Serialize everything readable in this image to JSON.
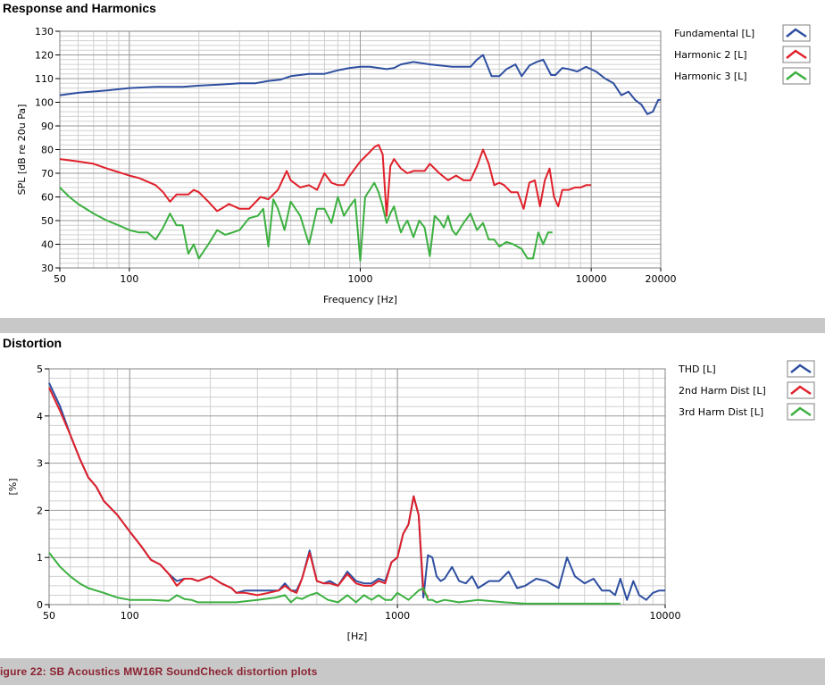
{
  "caption": "igure 22: SB Acoustics MW16R SoundCheck distortion plots",
  "colors": {
    "blue": "#2e4fa0",
    "red": "#e0202a",
    "green": "#3cb040",
    "grid_major": "#9a9a9a",
    "grid_minor": "#d0d0d0"
  },
  "chart_data": [
    {
      "type": "line",
      "title": "Response and Harmonics",
      "xlabel": "Frequency [Hz]",
      "ylabel": "SPL [dB re 20u Pa]",
      "xscale": "log",
      "xlim": [
        50,
        20000
      ],
      "ylim": [
        30,
        130
      ],
      "xticks": [
        50,
        100,
        1000,
        10000,
        20000
      ],
      "xtick_labels": [
        "50",
        "100",
        "1000",
        "10000",
        "20000"
      ],
      "yticks": [
        30,
        40,
        50,
        60,
        70,
        80,
        90,
        100,
        110,
        120,
        130
      ],
      "grid": true,
      "legend_position": "right",
      "series": [
        {
          "name": "Fundamental [L]",
          "color": "#2e4fa0",
          "x": [
            50,
            60,
            80,
            100,
            130,
            170,
            200,
            250,
            300,
            350,
            400,
            450,
            500,
            600,
            700,
            800,
            900,
            1000,
            1100,
            1200,
            1300,
            1400,
            1500,
            1700,
            2000,
            2500,
            3000,
            3200,
            3400,
            3700,
            4000,
            4300,
            4700,
            5000,
            5400,
            5800,
            6200,
            6700,
            7000,
            7500,
            8000,
            8700,
            9500,
            10500,
            11500,
            12500,
            13500,
            14500,
            15500,
            16500,
            17500,
            18500,
            19500,
            20000
          ],
          "y": [
            103,
            104,
            105,
            106,
            106.5,
            106.5,
            107,
            107.5,
            108,
            108,
            109,
            109.5,
            111,
            112,
            112,
            113.5,
            114.5,
            115,
            115,
            114.5,
            114,
            114.5,
            116,
            117,
            116,
            115,
            115,
            118,
            120,
            111,
            111,
            114,
            116,
            111,
            115.5,
            117,
            118,
            111.5,
            111.5,
            114.5,
            114,
            113,
            115,
            113,
            110,
            108,
            103,
            104.5,
            101,
            99,
            95,
            96,
            101,
            101
          ]
        },
        {
          "name": "Harmonic 2 [L]",
          "color": "#e0202a",
          "x": [
            50,
            60,
            70,
            80,
            100,
            110,
            130,
            140,
            150,
            160,
            170,
            180,
            190,
            200,
            220,
            240,
            250,
            270,
            300,
            330,
            370,
            400,
            440,
            480,
            500,
            550,
            600,
            650,
            700,
            750,
            800,
            850,
            900,
            1000,
            1050,
            1100,
            1150,
            1200,
            1250,
            1300,
            1350,
            1400,
            1500,
            1600,
            1700,
            1800,
            1900,
            2000,
            2200,
            2400,
            2600,
            2800,
            3000,
            3200,
            3400,
            3600,
            3800,
            4000,
            4200,
            4500,
            4800,
            5100,
            5400,
            5700,
            6000,
            6300,
            6600,
            6900,
            7200,
            7500,
            8000,
            8500,
            9000,
            9500,
            10000
          ],
          "y": [
            76,
            75,
            74,
            72,
            69,
            68,
            65,
            62,
            58,
            61,
            61,
            61,
            63,
            62,
            58,
            54,
            55,
            57,
            55,
            55,
            60,
            59,
            63,
            71,
            67,
            64,
            65,
            63,
            70,
            66,
            65,
            65,
            69,
            75,
            77,
            79,
            81,
            82,
            78,
            52,
            73,
            76,
            72,
            70,
            71,
            71,
            71,
            74,
            70,
            67,
            69,
            67,
            67,
            73,
            80,
            74,
            65,
            66,
            65,
            62,
            62,
            55,
            66,
            67,
            56,
            67,
            72,
            60,
            56,
            63,
            63,
            64,
            64,
            65,
            65
          ]
        },
        {
          "name": "Harmonic 3 [L]",
          "color": "#3cb040",
          "x": [
            50,
            55,
            60,
            70,
            80,
            90,
            100,
            110,
            120,
            130,
            140,
            150,
            160,
            170,
            180,
            190,
            200,
            220,
            240,
            260,
            280,
            300,
            330,
            360,
            380,
            400,
            420,
            440,
            470,
            500,
            550,
            600,
            650,
            700,
            750,
            800,
            850,
            900,
            950,
            1000,
            1050,
            1100,
            1150,
            1200,
            1250,
            1300,
            1350,
            1400,
            1450,
            1500,
            1550,
            1600,
            1700,
            1800,
            1900,
            2000,
            2100,
            2200,
            2300,
            2400,
            2500,
            2600,
            2800,
            3000,
            3200,
            3400,
            3600,
            3800,
            4000,
            4300,
            4600,
            5000,
            5300,
            5600,
            5900,
            6200,
            6500,
            6800
          ],
          "y": [
            64,
            60,
            57,
            53,
            50,
            48,
            46,
            45,
            45,
            42,
            47,
            53,
            48,
            48,
            36,
            40,
            34,
            40,
            46,
            44,
            45,
            46,
            51,
            52,
            55,
            39,
            59,
            55,
            46,
            58,
            52,
            40,
            55,
            55,
            49,
            60,
            52,
            56,
            59,
            33,
            60,
            63,
            66,
            62,
            56,
            49,
            53,
            56,
            50,
            45,
            48,
            50,
            43,
            50,
            47,
            35,
            52,
            50,
            47,
            52,
            46,
            44,
            49,
            53,
            46,
            49,
            42,
            42,
            39,
            41,
            40,
            38,
            34,
            34,
            45,
            40,
            45,
            45
          ]
        }
      ]
    },
    {
      "type": "line",
      "title": "Distortion",
      "xlabel": "[Hz]",
      "ylabel": "[%]",
      "xscale": "log",
      "xlim": [
        50,
        10000
      ],
      "ylim": [
        0,
        5
      ],
      "xticks": [
        50,
        100,
        1000,
        10000
      ],
      "xtick_labels": [
        "50",
        "100",
        "1000",
        "10000"
      ],
      "yticks": [
        0,
        1,
        2,
        3,
        4,
        5
      ],
      "grid": true,
      "legend_position": "right",
      "series": [
        {
          "name": "THD [L]",
          "color": "#2e4fa0",
          "x": [
            50,
            55,
            60,
            65,
            70,
            75,
            80,
            90,
            100,
            110,
            120,
            130,
            140,
            150,
            160,
            170,
            180,
            200,
            220,
            240,
            250,
            270,
            300,
            330,
            360,
            380,
            400,
            420,
            440,
            470,
            500,
            530,
            560,
            600,
            650,
            700,
            750,
            800,
            850,
            900,
            950,
            1000,
            1050,
            1100,
            1150,
            1200,
            1250,
            1300,
            1350,
            1400,
            1450,
            1500,
            1600,
            1700,
            1800,
            1900,
            2000,
            2200,
            2400,
            2600,
            2800,
            3000,
            3300,
            3600,
            4000,
            4300,
            4600,
            5000,
            5400,
            5800,
            6200,
            6500,
            6800,
            7200,
            7600,
            8000,
            8500,
            9000,
            9500,
            10000
          ],
          "y": [
            4.7,
            4.2,
            3.6,
            3.1,
            2.7,
            2.5,
            2.2,
            1.9,
            1.55,
            1.25,
            0.95,
            0.85,
            0.65,
            0.5,
            0.55,
            0.55,
            0.5,
            0.6,
            0.45,
            0.35,
            0.25,
            0.3,
            0.3,
            0.3,
            0.3,
            0.45,
            0.3,
            0.3,
            0.55,
            1.15,
            0.5,
            0.45,
            0.5,
            0.4,
            0.7,
            0.5,
            0.45,
            0.45,
            0.55,
            0.5,
            0.9,
            1.0,
            1.5,
            1.7,
            2.3,
            1.9,
            0.15,
            1.05,
            1.0,
            0.6,
            0.5,
            0.55,
            0.8,
            0.5,
            0.45,
            0.6,
            0.35,
            0.5,
            0.5,
            0.7,
            0.35,
            0.4,
            0.55,
            0.5,
            0.35,
            1.0,
            0.6,
            0.45,
            0.55,
            0.3,
            0.3,
            0.2,
            0.55,
            0.1,
            0.5,
            0.2,
            0.1,
            0.25,
            0.3,
            0.3
          ]
        },
        {
          "name": "2nd Harm Dist [L]",
          "color": "#e0202a",
          "x": [
            50,
            55,
            60,
            65,
            70,
            75,
            80,
            90,
            100,
            110,
            120,
            130,
            140,
            150,
            160,
            170,
            180,
            200,
            220,
            240,
            250,
            270,
            300,
            330,
            360,
            380,
            400,
            420,
            440,
            470,
            500,
            530,
            560,
            600,
            650,
            700,
            750,
            800,
            850,
            900,
            950,
            1000,
            1050,
            1100,
            1150,
            1200,
            1250,
            1300
          ],
          "y": [
            4.6,
            4.1,
            3.6,
            3.1,
            2.7,
            2.5,
            2.2,
            1.9,
            1.55,
            1.25,
            0.95,
            0.85,
            0.65,
            0.4,
            0.55,
            0.55,
            0.5,
            0.6,
            0.45,
            0.35,
            0.25,
            0.25,
            0.2,
            0.25,
            0.3,
            0.4,
            0.3,
            0.25,
            0.55,
            1.1,
            0.5,
            0.45,
            0.45,
            0.4,
            0.65,
            0.45,
            0.4,
            0.4,
            0.5,
            0.45,
            0.9,
            1.0,
            1.5,
            1.7,
            2.3,
            1.9,
            0.3,
            0.15
          ]
        },
        {
          "name": "3rd Harm Dist [L]",
          "color": "#3cb040",
          "x": [
            50,
            55,
            60,
            65,
            70,
            80,
            90,
            100,
            120,
            140,
            150,
            160,
            170,
            180,
            200,
            250,
            300,
            350,
            380,
            400,
            420,
            440,
            470,
            500,
            550,
            600,
            650,
            700,
            750,
            800,
            850,
            900,
            950,
            1000,
            1100,
            1200,
            1250,
            1300,
            1350,
            1400,
            1500,
            1700,
            2000,
            2500,
            3000,
            4000,
            5000,
            6000,
            6800
          ],
          "y": [
            1.1,
            0.8,
            0.6,
            0.45,
            0.35,
            0.25,
            0.15,
            0.1,
            0.1,
            0.08,
            0.2,
            0.12,
            0.1,
            0.05,
            0.05,
            0.05,
            0.1,
            0.15,
            0.2,
            0.05,
            0.15,
            0.12,
            0.2,
            0.25,
            0.1,
            0.05,
            0.2,
            0.05,
            0.2,
            0.1,
            0.2,
            0.1,
            0.1,
            0.25,
            0.1,
            0.3,
            0.35,
            0.1,
            0.1,
            0.05,
            0.1,
            0.05,
            0.1,
            0.05,
            0.02,
            0.02,
            0.02,
            0.02,
            0.02
          ]
        }
      ]
    }
  ]
}
